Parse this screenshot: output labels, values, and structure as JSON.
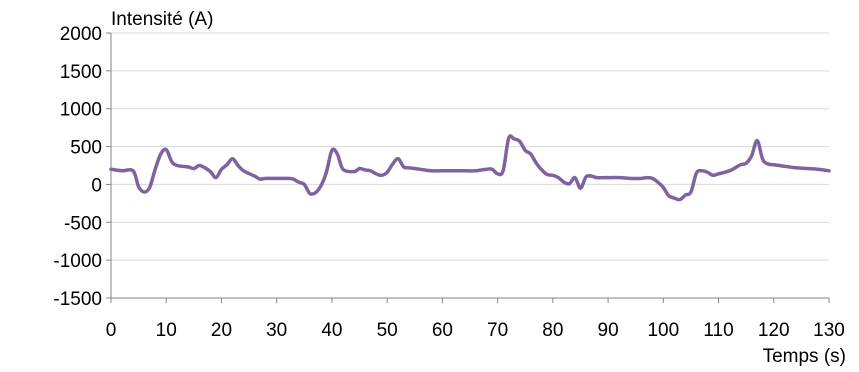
{
  "chart_data": {
    "type": "line",
    "title": "",
    "ylabel": "Intensité (A)",
    "xlabel": "Temps (s)",
    "xlim": [
      0,
      130
    ],
    "ylim": [
      -1500,
      2000
    ],
    "x_ticks": [
      0,
      10,
      20,
      30,
      40,
      50,
      60,
      70,
      80,
      90,
      100,
      110,
      120,
      130
    ],
    "y_ticks": [
      2000,
      1500,
      1000,
      500,
      0,
      -500,
      -1000,
      -1500
    ],
    "grid": "horizontal",
    "legend": "none",
    "series": [
      {
        "color": "#7f63a1",
        "x": [
          0,
          2,
          4,
          5,
          6,
          7,
          8,
          9,
          10,
          11,
          12,
          14,
          15,
          16,
          17,
          18,
          19,
          20,
          21,
          22,
          23,
          24,
          26,
          27,
          28,
          30,
          32,
          33,
          34,
          35,
          36,
          37,
          38,
          39,
          40,
          41,
          42,
          44,
          45,
          46,
          47,
          48,
          49,
          50,
          51,
          52,
          53,
          54,
          56,
          58,
          60,
          64,
          66,
          68,
          69,
          70,
          71,
          72,
          73,
          74,
          75,
          76,
          77,
          78,
          79,
          80,
          81,
          82,
          83,
          84,
          85,
          86,
          87,
          88,
          90,
          92,
          94,
          96,
          97,
          98,
          99,
          100,
          101,
          102,
          103,
          104,
          105,
          106,
          107,
          108,
          109,
          110,
          112,
          114,
          115,
          116,
          117,
          118,
          119,
          120,
          122,
          124,
          126,
          128,
          130
        ],
        "values": [
          200,
          180,
          180,
          -30,
          -100,
          -40,
          200,
          400,
          460,
          300,
          250,
          230,
          210,
          250,
          220,
          170,
          90,
          200,
          260,
          340,
          250,
          180,
          110,
          70,
          80,
          80,
          80,
          70,
          30,
          0,
          -120,
          -110,
          -20,
          160,
          450,
          400,
          200,
          170,
          210,
          190,
          180,
          140,
          120,
          160,
          270,
          340,
          230,
          220,
          200,
          180,
          180,
          180,
          180,
          200,
          200,
          140,
          180,
          610,
          600,
          570,
          450,
          400,
          280,
          190,
          130,
          120,
          90,
          30,
          10,
          90,
          -50,
          100,
          110,
          90,
          90,
          90,
          80,
          80,
          90,
          80,
          30,
          -40,
          -150,
          -180,
          -200,
          -140,
          -100,
          150,
          180,
          160,
          120,
          140,
          180,
          260,
          280,
          380,
          580,
          330,
          270,
          260,
          240,
          220,
          210,
          200,
          180
        ]
      }
    ]
  }
}
